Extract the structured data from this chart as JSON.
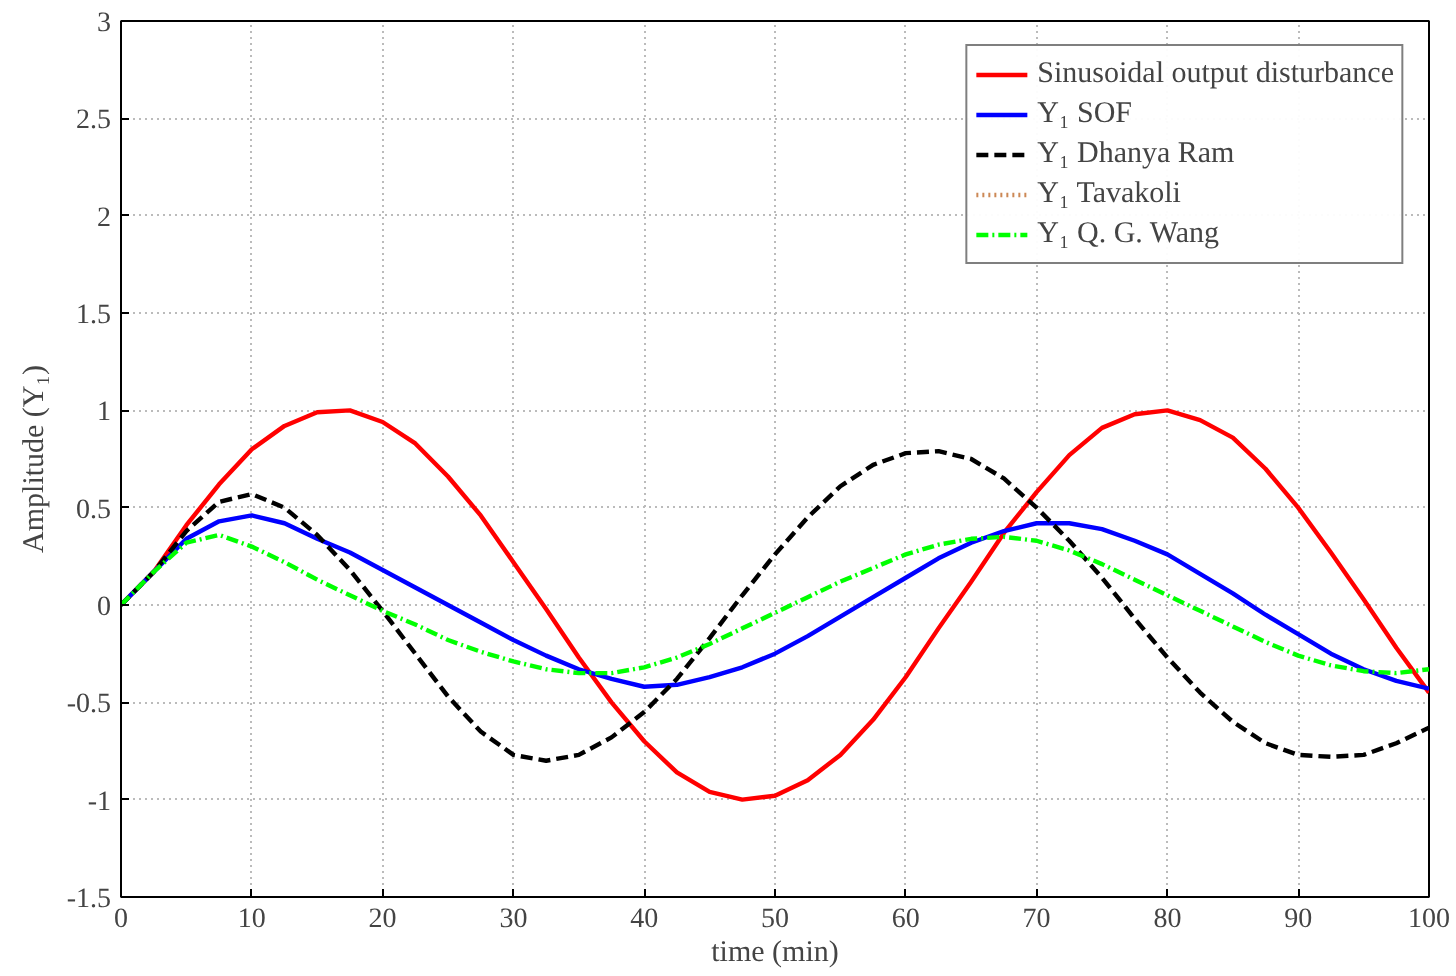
{
  "chart_data": {
    "type": "line",
    "xlabel": "time (min)",
    "ylabel": "Amplitude (Y₁)",
    "xlim": [
      0,
      100
    ],
    "ylim": [
      -1.5,
      3
    ],
    "xticks": [
      0,
      10,
      20,
      30,
      40,
      50,
      60,
      70,
      80,
      90,
      100
    ],
    "yticks": [
      -1.5,
      -1,
      -0.5,
      0,
      0.5,
      1,
      1.5,
      2,
      2.5,
      3
    ],
    "grid": true,
    "legend": "top right",
    "marker": "none",
    "x": [
      0,
      2.5,
      5,
      7.5,
      10,
      12.5,
      15,
      17.5,
      20,
      22.5,
      25,
      27.5,
      30,
      32.5,
      35,
      37.5,
      40,
      42.5,
      45,
      47.5,
      50,
      52.5,
      55,
      57.5,
      60,
      62.5,
      65,
      67.5,
      70,
      72.5,
      75,
      77.5,
      80,
      82.5,
      85,
      87.5,
      90,
      92.5,
      95,
      97.5,
      100
    ],
    "series": [
      {
        "name": "Sinusoidal output disturbance",
        "color": "#ff0000",
        "line_style": "solid",
        "values": [
          0,
          0.17,
          0.41,
          0.62,
          0.8,
          0.92,
          0.99,
          1.0,
          0.94,
          0.83,
          0.66,
          0.46,
          0.22,
          -0.02,
          -0.27,
          -0.5,
          -0.7,
          -0.86,
          -0.96,
          -1.0,
          -0.98,
          -0.9,
          -0.77,
          -0.59,
          -0.37,
          -0.12,
          0.12,
          0.37,
          0.58,
          0.77,
          0.91,
          0.98,
          1.0,
          0.95,
          0.86,
          0.7,
          0.5,
          0.27,
          0.03,
          -0.22,
          -0.45
        ]
      },
      {
        "name": "Y₁ SOF",
        "color": "#0000ff",
        "line_style": "solid",
        "values": [
          0,
          0.17,
          0.34,
          0.43,
          0.46,
          0.42,
          0.34,
          0.27,
          0.18,
          0.09,
          0.0,
          -0.09,
          -0.18,
          -0.26,
          -0.33,
          -0.38,
          -0.42,
          -0.41,
          -0.37,
          -0.32,
          -0.25,
          -0.16,
          -0.06,
          0.04,
          0.14,
          0.24,
          0.32,
          0.38,
          0.42,
          0.42,
          0.39,
          0.33,
          0.26,
          0.16,
          0.06,
          -0.05,
          -0.15,
          -0.25,
          -0.33,
          -0.39,
          -0.43
        ]
      },
      {
        "name": "Y₁ Dhanya Ram",
        "color": "#000000",
        "line_style": "dashed",
        "values": [
          0,
          0.17,
          0.38,
          0.53,
          0.57,
          0.5,
          0.36,
          0.18,
          -0.03,
          -0.25,
          -0.47,
          -0.65,
          -0.77,
          -0.8,
          -0.77,
          -0.68,
          -0.55,
          -0.38,
          -0.17,
          0.05,
          0.26,
          0.45,
          0.61,
          0.72,
          0.78,
          0.79,
          0.75,
          0.65,
          0.5,
          0.33,
          0.14,
          -0.07,
          -0.27,
          -0.45,
          -0.6,
          -0.71,
          -0.77,
          -0.78,
          -0.77,
          -0.71,
          -0.63
        ]
      },
      {
        "name": "Y₁ Tavakoli",
        "color": "#cc8855",
        "line_style": "dotted",
        "values": [
          null,
          null,
          null,
          null,
          null,
          null,
          null,
          null,
          null,
          null,
          null,
          null,
          null,
          null,
          null,
          null,
          null,
          null,
          null,
          null,
          null,
          null,
          null,
          null,
          null,
          null,
          null,
          null,
          null,
          null,
          null,
          null,
          null,
          null,
          null,
          null,
          null,
          null,
          null,
          null,
          null
        ]
      },
      {
        "name": "Y₁ Q. G. Wang",
        "color": "#00ff00",
        "line_style": "dashdot",
        "values": [
          0,
          0.17,
          0.32,
          0.36,
          0.3,
          0.22,
          0.13,
          0.05,
          -0.03,
          -0.1,
          -0.18,
          -0.24,
          -0.29,
          -0.33,
          -0.35,
          -0.35,
          -0.32,
          -0.27,
          -0.2,
          -0.12,
          -0.04,
          0.04,
          0.12,
          0.19,
          0.26,
          0.31,
          0.34,
          0.35,
          0.33,
          0.28,
          0.21,
          0.13,
          0.05,
          -0.03,
          -0.11,
          -0.19,
          -0.26,
          -0.31,
          -0.34,
          -0.35,
          -0.33
        ]
      }
    ]
  }
}
